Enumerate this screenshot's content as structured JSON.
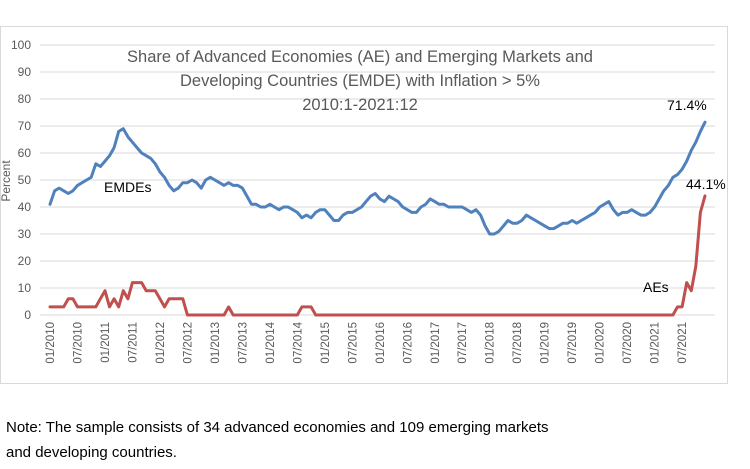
{
  "chart_data": {
    "type": "line",
    "title_lines": [
      "Share of Advanced Economies (AE) and Emerging Markets and",
      "Developing Countries (EMDE) with Inflation > 5%",
      "2010:1-2021:12"
    ],
    "ylabel": "Percent",
    "xlabel": "",
    "ylim": [
      0,
      100
    ],
    "y_ticks": [
      "0",
      "10",
      "20",
      "30",
      "40",
      "50",
      "60",
      "70",
      "80",
      "90",
      "100"
    ],
    "x_range": [
      "2010-01",
      "2021-12"
    ],
    "x_tick_labels": [
      "01/2010",
      "07/2010",
      "01/2011",
      "07/2011",
      "01/2012",
      "07/2012",
      "01/2013",
      "07/2013",
      "01/2014",
      "07/2014",
      "01/2015",
      "07/2015",
      "01/2016",
      "07/2016",
      "01/2017",
      "07/2017",
      "01/2018",
      "07/2018",
      "01/2019",
      "07/2019",
      "01/2020",
      "07/2020",
      "01/2021",
      "07/2021"
    ],
    "grid": true,
    "series": [
      {
        "name": "EMDEs",
        "color": "#4f81bd",
        "label": "EMDEs",
        "points": [
          [
            "2010-01",
            41
          ],
          [
            "2010-02",
            46
          ],
          [
            "2010-03",
            47
          ],
          [
            "2010-04",
            46
          ],
          [
            "2010-05",
            45
          ],
          [
            "2010-06",
            46
          ],
          [
            "2010-07",
            48
          ],
          [
            "2010-08",
            49
          ],
          [
            "2010-09",
            50
          ],
          [
            "2010-10",
            51
          ],
          [
            "2010-11",
            56
          ],
          [
            "2010-12",
            55
          ],
          [
            "2011-01",
            57
          ],
          [
            "2011-02",
            59
          ],
          [
            "2011-03",
            62
          ],
          [
            "2011-04",
            68
          ],
          [
            "2011-05",
            69
          ],
          [
            "2011-06",
            66
          ],
          [
            "2011-07",
            64
          ],
          [
            "2011-08",
            62
          ],
          [
            "2011-09",
            60
          ],
          [
            "2011-10",
            59
          ],
          [
            "2011-11",
            58
          ],
          [
            "2011-12",
            56
          ],
          [
            "2012-01",
            53
          ],
          [
            "2012-02",
            51
          ],
          [
            "2012-03",
            48
          ],
          [
            "2012-04",
            46
          ],
          [
            "2012-05",
            47
          ],
          [
            "2012-06",
            49
          ],
          [
            "2012-07",
            49
          ],
          [
            "2012-08",
            50
          ],
          [
            "2012-09",
            49
          ],
          [
            "2012-10",
            47
          ],
          [
            "2012-11",
            50
          ],
          [
            "2012-12",
            51
          ],
          [
            "2013-01",
            50
          ],
          [
            "2013-02",
            49
          ],
          [
            "2013-03",
            48
          ],
          [
            "2013-04",
            49
          ],
          [
            "2013-05",
            48
          ],
          [
            "2013-06",
            48
          ],
          [
            "2013-07",
            47
          ],
          [
            "2013-08",
            44
          ],
          [
            "2013-09",
            41
          ],
          [
            "2013-10",
            41
          ],
          [
            "2013-11",
            40
          ],
          [
            "2013-12",
            40
          ],
          [
            "2014-01",
            41
          ],
          [
            "2014-02",
            40
          ],
          [
            "2014-03",
            39
          ],
          [
            "2014-04",
            40
          ],
          [
            "2014-05",
            40
          ],
          [
            "2014-06",
            39
          ],
          [
            "2014-07",
            38
          ],
          [
            "2014-08",
            36
          ],
          [
            "2014-09",
            37
          ],
          [
            "2014-10",
            36
          ],
          [
            "2014-11",
            38
          ],
          [
            "2014-12",
            39
          ],
          [
            "2015-01",
            39
          ],
          [
            "2015-02",
            37
          ],
          [
            "2015-03",
            35
          ],
          [
            "2015-04",
            35
          ],
          [
            "2015-05",
            37
          ],
          [
            "2015-06",
            38
          ],
          [
            "2015-07",
            38
          ],
          [
            "2015-08",
            39
          ],
          [
            "2015-09",
            40
          ],
          [
            "2015-10",
            42
          ],
          [
            "2015-11",
            44
          ],
          [
            "2015-12",
            45
          ],
          [
            "2016-01",
            43
          ],
          [
            "2016-02",
            42
          ],
          [
            "2016-03",
            44
          ],
          [
            "2016-04",
            43
          ],
          [
            "2016-05",
            42
          ],
          [
            "2016-06",
            40
          ],
          [
            "2016-07",
            39
          ],
          [
            "2016-08",
            38
          ],
          [
            "2016-09",
            38
          ],
          [
            "2016-10",
            40
          ],
          [
            "2016-11",
            41
          ],
          [
            "2016-12",
            43
          ],
          [
            "2017-01",
            42
          ],
          [
            "2017-02",
            41
          ],
          [
            "2017-03",
            41
          ],
          [
            "2017-04",
            40
          ],
          [
            "2017-05",
            40
          ],
          [
            "2017-06",
            40
          ],
          [
            "2017-07",
            40
          ],
          [
            "2017-08",
            39
          ],
          [
            "2017-09",
            38
          ],
          [
            "2017-10",
            39
          ],
          [
            "2017-11",
            37
          ],
          [
            "2017-12",
            33
          ],
          [
            "2018-01",
            30
          ],
          [
            "2018-02",
            30
          ],
          [
            "2018-03",
            31
          ],
          [
            "2018-04",
            33
          ],
          [
            "2018-05",
            35
          ],
          [
            "2018-06",
            34
          ],
          [
            "2018-07",
            34
          ],
          [
            "2018-08",
            35
          ],
          [
            "2018-09",
            37
          ],
          [
            "2018-10",
            36
          ],
          [
            "2018-11",
            35
          ],
          [
            "2018-12",
            34
          ],
          [
            "2019-01",
            33
          ],
          [
            "2019-02",
            32
          ],
          [
            "2019-03",
            32
          ],
          [
            "2019-04",
            33
          ],
          [
            "2019-05",
            34
          ],
          [
            "2019-06",
            34
          ],
          [
            "2019-07",
            35
          ],
          [
            "2019-08",
            34
          ],
          [
            "2019-09",
            35
          ],
          [
            "2019-10",
            36
          ],
          [
            "2019-11",
            37
          ],
          [
            "2019-12",
            38
          ],
          [
            "2020-01",
            40
          ],
          [
            "2020-02",
            41
          ],
          [
            "2020-03",
            42
          ],
          [
            "2020-04",
            39
          ],
          [
            "2020-05",
            37
          ],
          [
            "2020-06",
            38
          ],
          [
            "2020-07",
            38
          ],
          [
            "2020-08",
            39
          ],
          [
            "2020-09",
            38
          ],
          [
            "2020-10",
            37
          ],
          [
            "2020-11",
            37
          ],
          [
            "2020-12",
            38
          ],
          [
            "2021-01",
            40
          ],
          [
            "2021-02",
            43
          ],
          [
            "2021-03",
            46
          ],
          [
            "2021-04",
            48
          ],
          [
            "2021-05",
            51
          ],
          [
            "2021-06",
            52
          ],
          [
            "2021-07",
            54
          ],
          [
            "2021-08",
            57
          ],
          [
            "2021-09",
            61
          ],
          [
            "2021-10",
            64
          ],
          [
            "2021-11",
            68
          ],
          [
            "2021-12",
            71.4
          ]
        ]
      },
      {
        "name": "AEs",
        "color": "#c0504d",
        "label": "AEs",
        "points": [
          [
            "2010-01",
            3
          ],
          [
            "2010-02",
            3
          ],
          [
            "2010-03",
            3
          ],
          [
            "2010-04",
            3
          ],
          [
            "2010-05",
            6
          ],
          [
            "2010-06",
            6
          ],
          [
            "2010-07",
            3
          ],
          [
            "2010-08",
            3
          ],
          [
            "2010-09",
            3
          ],
          [
            "2010-10",
            3
          ],
          [
            "2010-11",
            3
          ],
          [
            "2010-12",
            6
          ],
          [
            "2011-01",
            9
          ],
          [
            "2011-02",
            3
          ],
          [
            "2011-03",
            6
          ],
          [
            "2011-04",
            3
          ],
          [
            "2011-05",
            9
          ],
          [
            "2011-06",
            6
          ],
          [
            "2011-07",
            12
          ],
          [
            "2011-08",
            12
          ],
          [
            "2011-09",
            12
          ],
          [
            "2011-10",
            9
          ],
          [
            "2011-11",
            9
          ],
          [
            "2011-12",
            9
          ],
          [
            "2012-01",
            6
          ],
          [
            "2012-02",
            3
          ],
          [
            "2012-03",
            6
          ],
          [
            "2012-04",
            6
          ],
          [
            "2012-05",
            6
          ],
          [
            "2012-06",
            6
          ],
          [
            "2012-07",
            0
          ],
          [
            "2012-08",
            0
          ],
          [
            "2012-09",
            0
          ],
          [
            "2012-10",
            0
          ],
          [
            "2012-11",
            0
          ],
          [
            "2012-12",
            0
          ],
          [
            "2013-01",
            0
          ],
          [
            "2013-02",
            0
          ],
          [
            "2013-03",
            0
          ],
          [
            "2013-04",
            3
          ],
          [
            "2013-05",
            0
          ],
          [
            "2013-06",
            0
          ],
          [
            "2013-07",
            0
          ],
          [
            "2013-08",
            0
          ],
          [
            "2013-09",
            0
          ],
          [
            "2013-10",
            0
          ],
          [
            "2013-11",
            0
          ],
          [
            "2013-12",
            0
          ],
          [
            "2014-01",
            0
          ],
          [
            "2014-02",
            0
          ],
          [
            "2014-03",
            0
          ],
          [
            "2014-04",
            0
          ],
          [
            "2014-05",
            0
          ],
          [
            "2014-06",
            0
          ],
          [
            "2014-07",
            0
          ],
          [
            "2014-08",
            3
          ],
          [
            "2014-09",
            3
          ],
          [
            "2014-10",
            3
          ],
          [
            "2014-11",
            0
          ],
          [
            "2014-12",
            0
          ],
          [
            "2015-01",
            0
          ],
          [
            "2020-12",
            0
          ],
          [
            "2021-01",
            0
          ],
          [
            "2021-02",
            0
          ],
          [
            "2021-03",
            0
          ],
          [
            "2021-04",
            0
          ],
          [
            "2021-05",
            0
          ],
          [
            "2021-06",
            3
          ],
          [
            "2021-07",
            3
          ],
          [
            "2021-08",
            12
          ],
          [
            "2021-09",
            9
          ],
          [
            "2021-10",
            18
          ],
          [
            "2021-11",
            38
          ],
          [
            "2021-12",
            44.1
          ]
        ]
      }
    ],
    "annotations": [
      {
        "text": "71.4%",
        "series": "EMDEs",
        "at": "end"
      },
      {
        "text": "44.1%",
        "series": "AEs",
        "at": "end"
      }
    ]
  },
  "note": {
    "line1": "Note: The sample consists of 34 advanced economies and 109 emerging markets",
    "line2": "and developing countries."
  }
}
